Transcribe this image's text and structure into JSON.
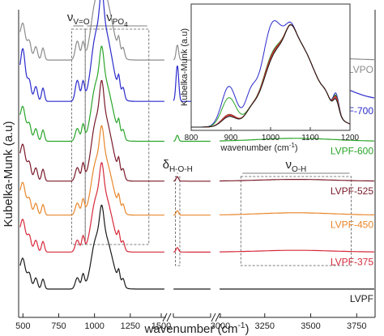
{
  "chart_data": [
    {
      "id": "main",
      "type": "line",
      "xlabel": "wavenumber (cm",
      "xlabel_sup": "-1",
      "xlabel_end": ")",
      "ylabel": "Kubelka-Munk (a.u)",
      "axis_break": true,
      "segments": [
        {
          "id": "seg1",
          "xlim": [
            470,
            1500
          ],
          "ticks": [
            500,
            750,
            1000,
            1250,
            1500
          ]
        },
        {
          "id": "seg2",
          "xlim": [
            1500,
            3000
          ],
          "ticks": [
            1500,
            3000
          ]
        },
        {
          "id": "seg3",
          "xlim": [
            3000,
            3850
          ],
          "ticks": [
            3000,
            3250,
            3500,
            3750
          ]
        }
      ],
      "series": [
        {
          "name": "LVPO",
          "color": "#8c8c8c",
          "baseline": 0.86,
          "band": {
            "center": 1660,
            "height": 0.05,
            "width": 50
          },
          "broad": 0.012
        },
        {
          "name": "LVPF-700",
          "color": "#2b2bcc",
          "baseline": 0.72,
          "band": {
            "center": 1660,
            "height": 0.12,
            "width": 55
          },
          "broad": 0.11
        },
        {
          "name": "LVPF-600",
          "color": "#2aa52a",
          "baseline": 0.585,
          "band": {
            "center": 1660,
            "height": 0.02,
            "width": 50
          },
          "broad": 0.01
        },
        {
          "name": "LVPF-525",
          "color": "#7a1a2a",
          "baseline": 0.45,
          "band": {
            "center": 1660,
            "height": 0.015,
            "width": 50
          },
          "broad": 0.006
        },
        {
          "name": "LVPF-450",
          "color": "#e8862a",
          "baseline": 0.335,
          "band": {
            "center": 1660,
            "height": 0.015,
            "width": 50
          },
          "broad": 0.008
        },
        {
          "name": "LVPF-375",
          "color": "#d62a3a",
          "baseline": 0.21,
          "band": {
            "center": 1660,
            "height": 0.015,
            "width": 50
          },
          "broad": 0.006
        },
        {
          "name": "LVPF",
          "color": "#1a1a1a",
          "baseline": 0.085,
          "band": {
            "center": 1660,
            "height": 0.0,
            "width": 50
          },
          "broad": 0.0
        }
      ],
      "annotations": [
        {
          "id": "nu-vo",
          "label": "ν",
          "sub": "V=O",
          "range": [
            840,
            935
          ]
        },
        {
          "id": "nu-po4",
          "label": "ν",
          "sub": "PO",
          "sub2": "4",
          "range": [
            935,
            1380
          ]
        },
        {
          "id": "delta-hoh",
          "label": "δ",
          "sub": "H-O-H",
          "range": [
            1580,
            1760
          ]
        },
        {
          "id": "nu-oh",
          "label": "ν",
          "sub": "O-H",
          "range": [
            3120,
            3720
          ]
        }
      ]
    },
    {
      "id": "inset",
      "type": "line",
      "xlabel": "wavenumber (cm",
      "xlabel_sup": "-1",
      "xlabel_end": ")",
      "ylabel": "Kubelka-Munk (a.u)",
      "xlim": [
        800,
        1200
      ],
      "ticks": [
        800,
        900,
        1000,
        1100,
        1200
      ],
      "series": [
        {
          "name": "LVPO",
          "color": "#8c8c8c"
        },
        {
          "name": "LVPF-700",
          "color": "#2b2bcc"
        },
        {
          "name": "LVPF-600",
          "color": "#2aa52a"
        },
        {
          "name": "LVPF-525",
          "color": "#7a1a2a"
        },
        {
          "name": "LVPF-450",
          "color": "#e8862a"
        },
        {
          "name": "LVPF-375",
          "color": "#d62a3a"
        },
        {
          "name": "LVPF",
          "color": "#1a1a1a"
        }
      ]
    }
  ]
}
